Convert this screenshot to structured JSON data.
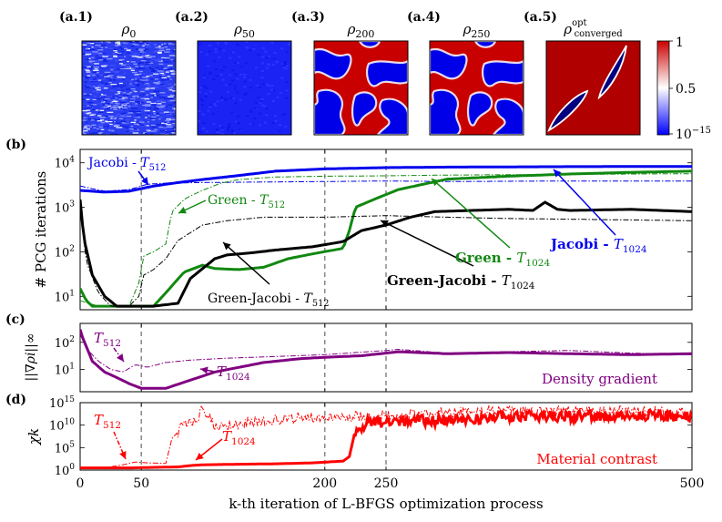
{
  "chart_data": [
    {
      "type": "heatmap",
      "panel": "a",
      "snapshots": [
        {
          "tag": "(a.1)",
          "title": "ρ0",
          "title_base": "ρ",
          "title_sub": "0",
          "iteration": 0,
          "pattern": "noise",
          "mean_density": 0.3
        },
        {
          "tag": "(a.2)",
          "title": "ρ50",
          "title_base": "ρ",
          "title_sub": "50",
          "iteration": 50,
          "pattern": "near-uniform low",
          "mean_density": 0.1
        },
        {
          "tag": "(a.3)",
          "title": "ρ200",
          "title_base": "ρ",
          "title_sub": "200",
          "iteration": 200,
          "pattern": "blobs",
          "mean_density": 0.6
        },
        {
          "tag": "(a.4)",
          "title": "ρ250",
          "title_base": "ρ",
          "title_sub": "250",
          "iteration": 250,
          "pattern": "blobs",
          "mean_density": 0.6
        },
        {
          "tag": "(a.5)",
          "title": "ρopt converged",
          "title_base": "ρ",
          "title_sup": "opt",
          "title_sub": "converged",
          "iteration": 500,
          "pattern": "two inclusions",
          "mean_density": 0.9
        }
      ],
      "colorbar": {
        "ticks": [
          "1",
          "0.5",
          "10−15"
        ],
        "min_label": "10",
        "min_exp": "−15",
        "mid_label": "0.5",
        "max_label": "1",
        "colors": [
          "#0000ff",
          "#ffffff",
          "#cc0000"
        ]
      }
    },
    {
      "type": "line",
      "panel": "b",
      "tag": "(b)",
      "ylabel": "# PCG iterations",
      "yscale": "log",
      "ylim": [
        5,
        20000
      ],
      "yticks": [
        "10^1",
        "10^2",
        "10^3",
        "10^4"
      ],
      "xlim": [
        0,
        500
      ],
      "vlines": [
        50,
        200,
        250
      ],
      "series": [
        {
          "name": "Jacobi - T1024",
          "color": "#0000ee",
          "style": "solid-thick",
          "points": [
            [
              0,
              2400
            ],
            [
              20,
              2200
            ],
            [
              40,
              2300
            ],
            [
              60,
              3000
            ],
            [
              80,
              3600
            ],
            [
              100,
              4200
            ],
            [
              130,
              5200
            ],
            [
              160,
              6500
            ],
            [
              200,
              7300
            ],
            [
              250,
              7800
            ],
            [
              300,
              8000
            ],
            [
              400,
              8200
            ],
            [
              500,
              8300
            ]
          ]
        },
        {
          "name": "Jacobi - T512",
          "color": "#0000ee",
          "style": "dashdot-thin",
          "points": [
            [
              0,
              3000
            ],
            [
              20,
              2300
            ],
            [
              40,
              2500
            ],
            [
              55,
              3300
            ],
            [
              70,
              3500
            ],
            [
              100,
              3600
            ],
            [
              150,
              3700
            ],
            [
              200,
              3800
            ],
            [
              250,
              3900
            ],
            [
              300,
              3800
            ],
            [
              400,
              3900
            ],
            [
              500,
              3900
            ]
          ]
        },
        {
          "name": "Green - T1024",
          "color": "#118811",
          "style": "solid-thick",
          "points": [
            [
              0,
              15
            ],
            [
              5,
              8
            ],
            [
              10,
              6
            ],
            [
              30,
              6
            ],
            [
              60,
              6
            ],
            [
              70,
              12
            ],
            [
              85,
              35
            ],
            [
              100,
              50
            ],
            [
              110,
              42
            ],
            [
              130,
              40
            ],
            [
              150,
              45
            ],
            [
              170,
              70
            ],
            [
              190,
              90
            ],
            [
              215,
              120
            ],
            [
              220,
              300
            ],
            [
              225,
              1000
            ],
            [
              240,
              1500
            ],
            [
              260,
              2500
            ],
            [
              300,
              4300
            ],
            [
              350,
              5000
            ],
            [
              400,
              5600
            ],
            [
              450,
              6100
            ],
            [
              500,
              6500
            ]
          ]
        },
        {
          "name": "Green - T512",
          "color": "#118811",
          "style": "dashdot-thin",
          "points": [
            [
              0,
              8
            ],
            [
              15,
              6
            ],
            [
              40,
              6
            ],
            [
              48,
              20
            ],
            [
              52,
              80
            ],
            [
              60,
              100
            ],
            [
              70,
              150
            ],
            [
              75,
              800
            ],
            [
              85,
              1500
            ],
            [
              90,
              1800
            ],
            [
              100,
              2400
            ],
            [
              115,
              3500
            ],
            [
              130,
              4200
            ],
            [
              160,
              4800
            ],
            [
              200,
              5000
            ],
            [
              250,
              5100
            ],
            [
              300,
              5300
            ],
            [
              400,
              5500
            ],
            [
              500,
              5700
            ]
          ]
        },
        {
          "name": "Green-Jacobi - T1024",
          "color": "#000000",
          "style": "solid-thick",
          "points": [
            [
              0,
              1500
            ],
            [
              3,
              200
            ],
            [
              10,
              30
            ],
            [
              20,
              10
            ],
            [
              30,
              6
            ],
            [
              60,
              6
            ],
            [
              80,
              7
            ],
            [
              90,
              25
            ],
            [
              110,
              70
            ],
            [
              120,
              85
            ],
            [
              140,
              95
            ],
            [
              160,
              110
            ],
            [
              190,
              130
            ],
            [
              215,
              170
            ],
            [
              230,
              300
            ],
            [
              250,
              400
            ],
            [
              270,
              600
            ],
            [
              290,
              800
            ],
            [
              320,
              850
            ],
            [
              350,
              900
            ],
            [
              370,
              850
            ],
            [
              380,
              1300
            ],
            [
              390,
              900
            ],
            [
              400,
              850
            ],
            [
              450,
              900
            ],
            [
              500,
              800
            ]
          ]
        },
        {
          "name": "Green-Jacobi - T512",
          "color": "#000000",
          "style": "dashdot-thin",
          "points": [
            [
              0,
              1000
            ],
            [
              5,
              60
            ],
            [
              15,
              12
            ],
            [
              25,
              6
            ],
            [
              40,
              6
            ],
            [
              48,
              10
            ],
            [
              52,
              30
            ],
            [
              60,
              40
            ],
            [
              70,
              70
            ],
            [
              80,
              180
            ],
            [
              100,
              400
            ],
            [
              120,
              500
            ],
            [
              150,
              600
            ],
            [
              200,
              600
            ],
            [
              250,
              650
            ],
            [
              300,
              600
            ],
            [
              350,
              560
            ],
            [
              400,
              540
            ],
            [
              450,
              520
            ],
            [
              500,
              500
            ]
          ]
        }
      ],
      "annotations": [
        {
          "id": "jacobi-512",
          "label": "Jacobi - ",
          "sym": "T",
          "sub": "512",
          "color": "#0000ee",
          "bold": false
        },
        {
          "id": "green-512",
          "label": "Green - ",
          "sym": "T",
          "sub": "512",
          "color": "#118811",
          "bold": false
        },
        {
          "id": "gj-512",
          "label": "Green-Jacobi - ",
          "sym": "T",
          "sub": "512",
          "color": "#000000",
          "bold": false
        },
        {
          "id": "gj-1024",
          "label": "Green-Jacobi - ",
          "sym": "T",
          "sub": "1024",
          "color": "#000000",
          "bold": true
        },
        {
          "id": "green-1024",
          "label": "Green - ",
          "sym": "T",
          "sub": "1024",
          "color": "#118811",
          "bold": true
        },
        {
          "id": "jacobi-1024",
          "label": "Jacobi - ",
          "sym": "T",
          "sub": "1024",
          "color": "#0000ee",
          "bold": true
        }
      ]
    },
    {
      "type": "line",
      "panel": "c",
      "tag": "(c)",
      "ylabel": "||∇ρi||∞",
      "yscale": "log",
      "ylim": [
        1.5,
        500
      ],
      "yticks": [
        "10^1",
        "10^2"
      ],
      "xlim": [
        0,
        500
      ],
      "vlines": [
        50,
        200,
        250
      ],
      "series": [
        {
          "name": "T1024",
          "color": "#800080",
          "style": "solid-thick",
          "points": [
            [
              0,
              300
            ],
            [
              2,
              150
            ],
            [
              10,
              20
            ],
            [
              20,
              8
            ],
            [
              30,
              5
            ],
            [
              40,
              3
            ],
            [
              50,
              2
            ],
            [
              70,
              2
            ],
            [
              90,
              4
            ],
            [
              110,
              8
            ],
            [
              130,
              12
            ],
            [
              150,
              18
            ],
            [
              180,
              25
            ],
            [
              200,
              28
            ],
            [
              230,
              32
            ],
            [
              250,
              40
            ],
            [
              260,
              45
            ],
            [
              300,
              38
            ],
            [
              350,
              42
            ],
            [
              400,
              38
            ],
            [
              450,
              35
            ],
            [
              500,
              38
            ]
          ]
        },
        {
          "name": "T512",
          "color": "#800080",
          "style": "dashdot-thin",
          "points": [
            [
              0,
              200
            ],
            [
              5,
              60
            ],
            [
              15,
              20
            ],
            [
              25,
              10
            ],
            [
              35,
              8
            ],
            [
              45,
              15
            ],
            [
              55,
              12
            ],
            [
              70,
              18
            ],
            [
              90,
              22
            ],
            [
              120,
              26
            ],
            [
              160,
              30
            ],
            [
              200,
              35
            ],
            [
              250,
              50
            ],
            [
              260,
              55
            ],
            [
              300,
              40
            ],
            [
              350,
              45
            ],
            [
              400,
              50
            ],
            [
              450,
              40
            ],
            [
              500,
              35
            ]
          ]
        }
      ],
      "annotations": [
        {
          "id": "c-512",
          "sym": "T",
          "sub": "512",
          "color": "#800080"
        },
        {
          "id": "c-1024",
          "sym": "T",
          "sub": "1024",
          "color": "#800080"
        }
      ],
      "corner_label": "Density gradient"
    },
    {
      "type": "line",
      "panel": "d",
      "tag": "(d)",
      "ylabel": "χk",
      "yscale": "log",
      "ylim": [
        1,
        1000000000000000.0
      ],
      "yticks": [
        "10^0",
        "10^5",
        "10^10",
        "10^15"
      ],
      "xlim": [
        0,
        500
      ],
      "xticks": [
        0,
        50,
        200,
        250,
        500
      ],
      "xlabel": "k-th iteration of L-BFGS optimization process",
      "vlines": [
        50,
        200,
        250
      ],
      "series": [
        {
          "name": "T1024",
          "color": "#ff0000",
          "style": "solid-thick",
          "points": [
            [
              0,
              3
            ],
            [
              40,
              3
            ],
            [
              60,
              4
            ],
            [
              80,
              5
            ],
            [
              90,
              10
            ],
            [
              100,
              15
            ],
            [
              130,
              20
            ],
            [
              160,
              25
            ],
            [
              190,
              40
            ],
            [
              215,
              100
            ],
            [
              220,
              1000
            ],
            [
              225,
              1000000000.0
            ],
            [
              235,
              30000000000.0
            ],
            [
              260,
              100000000000.0
            ],
            [
              300,
              100000000000.0
            ],
            [
              350,
              1000000000000.0
            ],
            [
              400,
              1000000000000.0
            ],
            [
              450,
              1000000000000.0
            ],
            [
              500,
              1000000000000.0
            ]
          ],
          "noisy_from": 225
        },
        {
          "name": "T512",
          "color": "#ff0000",
          "style": "dashdot-thin",
          "points": [
            [
              0,
              2
            ],
            [
              20,
              3
            ],
            [
              35,
              15
            ],
            [
              45,
              60
            ],
            [
              55,
              40
            ],
            [
              70,
              30
            ],
            [
              75,
              10000000.0
            ],
            [
              85,
              10000000000.0
            ],
            [
              95,
              100000000000.0
            ],
            [
              100,
              100000000000000.0
            ],
            [
              110,
              10000000000.0
            ],
            [
              150,
              100000000000.0
            ],
            [
              200,
              1000000000000.0
            ],
            [
              250,
              1000000000000.0
            ],
            [
              300,
              10000000000000.0
            ],
            [
              400,
              10000000000000.0
            ],
            [
              500,
              10000000000000.0
            ]
          ],
          "noisy_from": 80
        }
      ],
      "annotations": [
        {
          "id": "d-512",
          "sym": "T",
          "sub": "512",
          "color": "#ff0000"
        },
        {
          "id": "d-1024",
          "sym": "T",
          "sub": "1024",
          "color": "#ff0000"
        }
      ],
      "corner_label": "Material contrast"
    }
  ]
}
